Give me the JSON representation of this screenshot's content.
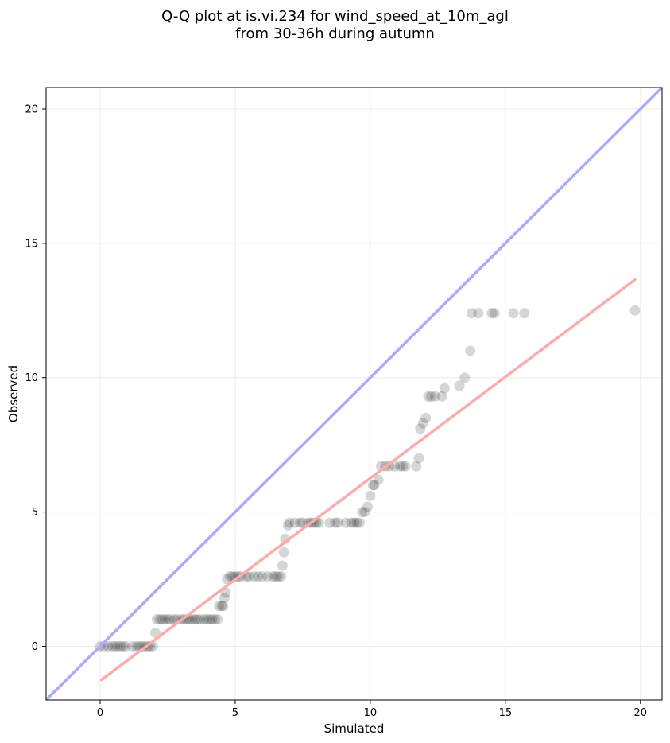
{
  "chart_data": {
    "type": "scatter",
    "title": "Q-Q plot at is.vi.234 for wind_speed_at_10m_agl",
    "subtitle": "from 30-36h during autumn",
    "xlabel": "Simulated",
    "ylabel": "Observed",
    "xlim": [
      -2,
      20.8
    ],
    "ylim": [
      -2,
      20.8
    ],
    "xticks": [
      0,
      5,
      10,
      15,
      20
    ],
    "yticks": [
      0,
      5,
      10,
      15,
      20
    ],
    "grid": true,
    "colors": {
      "points": "#000000",
      "identity_line": "#aaaaff",
      "fit_line": "#ffaaaa"
    },
    "series": [
      {
        "kind": "points",
        "x": [
          0.0,
          0.15,
          0.3,
          0.45,
          0.55,
          0.65,
          0.75,
          0.85,
          0.95,
          1.2,
          1.35,
          1.45,
          1.55,
          1.65,
          1.75,
          1.85,
          1.95,
          2.05,
          2.1,
          2.2,
          2.3,
          2.4,
          2.5,
          2.6,
          2.75,
          2.85,
          3.0,
          3.1,
          3.2,
          3.3,
          3.4,
          3.5,
          3.6,
          3.7,
          3.85,
          3.95,
          4.05,
          4.15,
          4.25,
          4.35,
          4.4,
          4.5,
          4.55,
          4.6,
          4.65,
          4.7,
          4.8,
          4.9,
          5.0,
          5.1,
          5.2,
          5.4,
          5.5,
          5.7,
          5.85,
          6.0,
          6.2,
          6.4,
          6.5,
          6.6,
          6.7,
          6.75,
          6.8,
          6.85,
          6.95,
          7.0,
          7.2,
          7.4,
          7.5,
          7.7,
          7.8,
          7.9,
          8.0,
          8.1,
          8.5,
          8.7,
          8.8,
          9.1,
          9.3,
          9.4,
          9.5,
          9.6,
          9.7,
          9.8,
          9.9,
          10.0,
          10.1,
          10.15,
          10.3,
          10.4,
          10.55,
          10.7,
          10.9,
          11.1,
          11.2,
          11.3,
          11.7,
          11.8,
          11.85,
          11.95,
          12.05,
          12.15,
          12.25,
          12.4,
          12.65,
          12.75,
          13.3,
          13.5,
          13.7,
          13.75,
          14.0,
          14.5,
          14.6,
          15.3,
          15.7,
          19.8
        ],
        "y": [
          0.0,
          0.0,
          0.0,
          0.0,
          0.0,
          0.0,
          0.0,
          0.0,
          0.0,
          0.0,
          0.0,
          0.0,
          0.0,
          0.0,
          0.0,
          0.0,
          0.0,
          0.5,
          1.0,
          1.0,
          1.0,
          1.0,
          1.0,
          1.0,
          1.0,
          1.0,
          1.0,
          1.0,
          1.0,
          1.0,
          1.0,
          1.0,
          1.0,
          1.0,
          1.0,
          1.0,
          1.0,
          1.0,
          1.0,
          1.0,
          1.5,
          1.5,
          1.5,
          1.8,
          2.0,
          2.5,
          2.6,
          2.6,
          2.6,
          2.6,
          2.6,
          2.6,
          2.6,
          2.6,
          2.6,
          2.6,
          2.6,
          2.6,
          2.6,
          2.6,
          2.6,
          3.0,
          3.5,
          4.0,
          4.5,
          4.6,
          4.6,
          4.6,
          4.6,
          4.6,
          4.6,
          4.6,
          4.6,
          4.6,
          4.6,
          4.6,
          4.6,
          4.6,
          4.6,
          4.6,
          4.6,
          4.6,
          5.0,
          5.0,
          5.2,
          5.6,
          6.0,
          6.0,
          6.2,
          6.7,
          6.7,
          6.7,
          6.7,
          6.7,
          6.7,
          6.7,
          6.7,
          7.0,
          8.1,
          8.3,
          8.5,
          9.3,
          9.3,
          9.3,
          9.3,
          9.6,
          9.7,
          10.0,
          11.0,
          12.4,
          12.4,
          12.4,
          12.4,
          12.4,
          12.4,
          12.5
        ]
      },
      {
        "kind": "line",
        "role": "identity",
        "x": [
          -2,
          20.8
        ],
        "y": [
          -2,
          20.8
        ]
      },
      {
        "kind": "line",
        "role": "fit",
        "x": [
          0.05,
          19.8
        ],
        "y": [
          -1.25,
          13.65
        ]
      }
    ]
  }
}
